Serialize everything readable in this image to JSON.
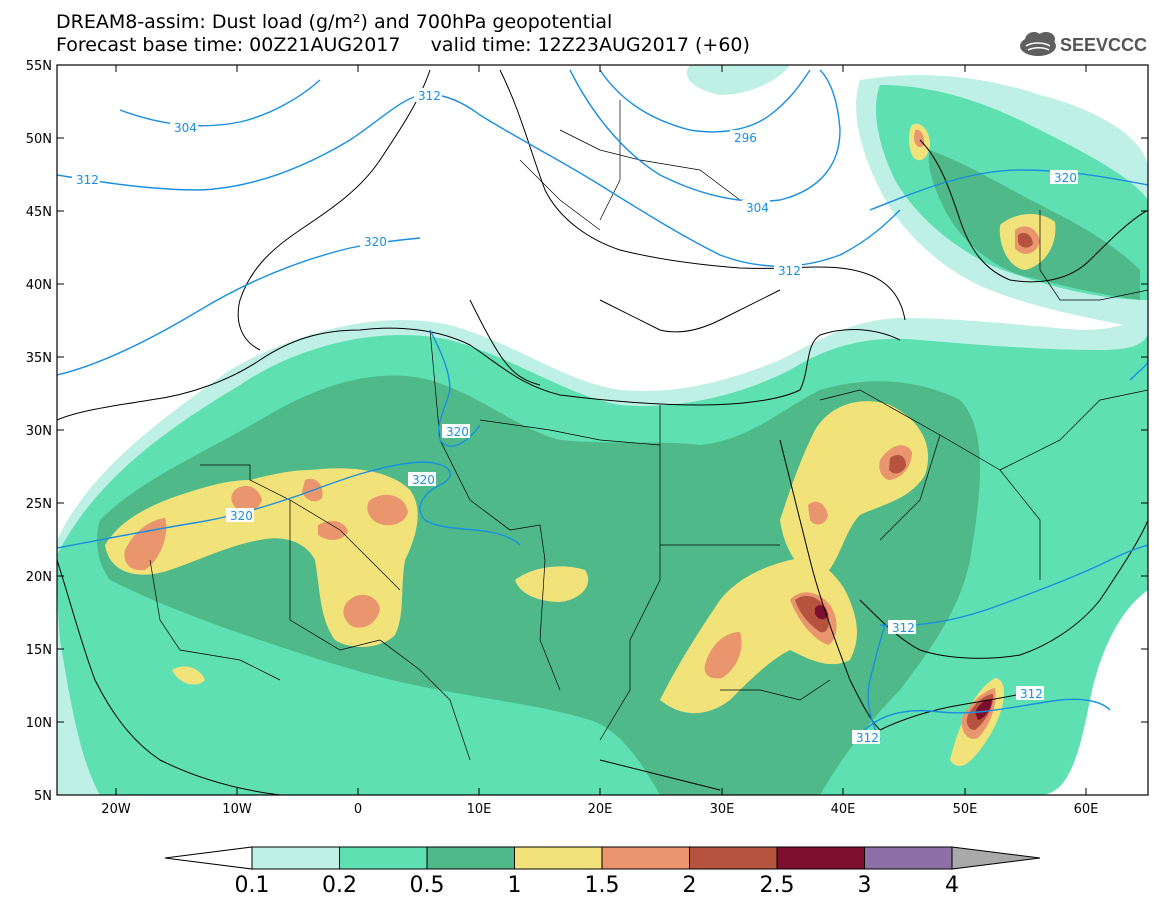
{
  "title": {
    "line1": "DREAM8-assim: Dust load (g/m²) and 700hPa geopotential",
    "line2": "Forecast base time: 00Z21AUG2017     valid time: 12Z23AUG2017 (+60)"
  },
  "logo": {
    "text": "SEEVCCC",
    "icon": "cloud-icon"
  },
  "axes": {
    "lat_labels": [
      "55N",
      "50N",
      "45N",
      "40N",
      "35N",
      "30N",
      "25N",
      "20N",
      "15N",
      "10N",
      "5N"
    ],
    "lon_labels": [
      "20W",
      "10W",
      "0",
      "10E",
      "20E",
      "30E",
      "40E",
      "50E",
      "60E"
    ]
  },
  "colorbar": {
    "labels": [
      "0.1",
      "0.2",
      "0.5",
      "1",
      "1.5",
      "2",
      "2.5",
      "3",
      "4"
    ],
    "colors": [
      "#bff0e6",
      "#5ee0b3",
      "#4fb98a",
      "#f2e27a",
      "#e9956e",
      "#b5533f",
      "#7d0f2e",
      "#8e6fa6",
      "#a9a9a9"
    ],
    "under_color": "#ffffff"
  },
  "contours": {
    "color": "#1a8fe0",
    "labels": [
      "304",
      "312",
      "312",
      "320",
      "296",
      "304",
      "312",
      "320",
      "320",
      "320",
      "320",
      "312",
      "312",
      "312"
    ]
  }
}
